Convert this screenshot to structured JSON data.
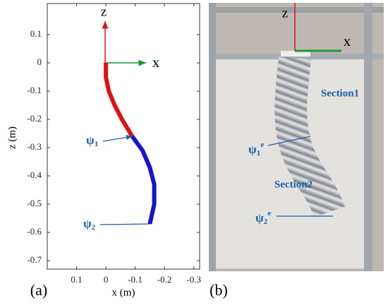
{
  "chart_data": {
    "type": "line",
    "xlabel": "x (m)",
    "ylabel": "z (m)",
    "panel_label": "(a)",
    "xlim": [
      0.2,
      -0.32
    ],
    "ylim": [
      -0.73,
      0.21
    ],
    "xticks": [
      0.1,
      0,
      -0.1,
      -0.2,
      -0.3
    ],
    "yticks": [
      0.1,
      0,
      -0.1,
      -0.2,
      -0.3,
      -0.4,
      -0.5,
      -0.6,
      -0.7
    ],
    "frame_labels": {
      "z": "z",
      "x": "x"
    },
    "series": [
      {
        "color": "#e01010",
        "x": [
          0,
          0,
          -0.01,
          -0.03,
          -0.055,
          -0.09
        ],
        "values": [
          0,
          -0.05,
          -0.1,
          -0.15,
          -0.2,
          -0.26
        ]
      },
      {
        "color": "#1414d0",
        "x": [
          -0.09,
          -0.125,
          -0.15,
          -0.165,
          -0.165,
          -0.15
        ],
        "values": [
          -0.26,
          -0.31,
          -0.37,
          -0.43,
          -0.5,
          -0.57
        ]
      }
    ],
    "annotations": [
      {
        "text": "ψ",
        "sub": "1"
      },
      {
        "text": "ψ",
        "sub": "2"
      }
    ]
  },
  "photo": {
    "panel_label": "(b)",
    "z": "z",
    "x": "x",
    "section1": "Section1",
    "section2": "Section2",
    "psi1": {
      "text": "ψ",
      "sub": "1",
      "sup": "e"
    },
    "psi2": {
      "text": "ψ",
      "sub": "2",
      "sup": "e"
    }
  }
}
